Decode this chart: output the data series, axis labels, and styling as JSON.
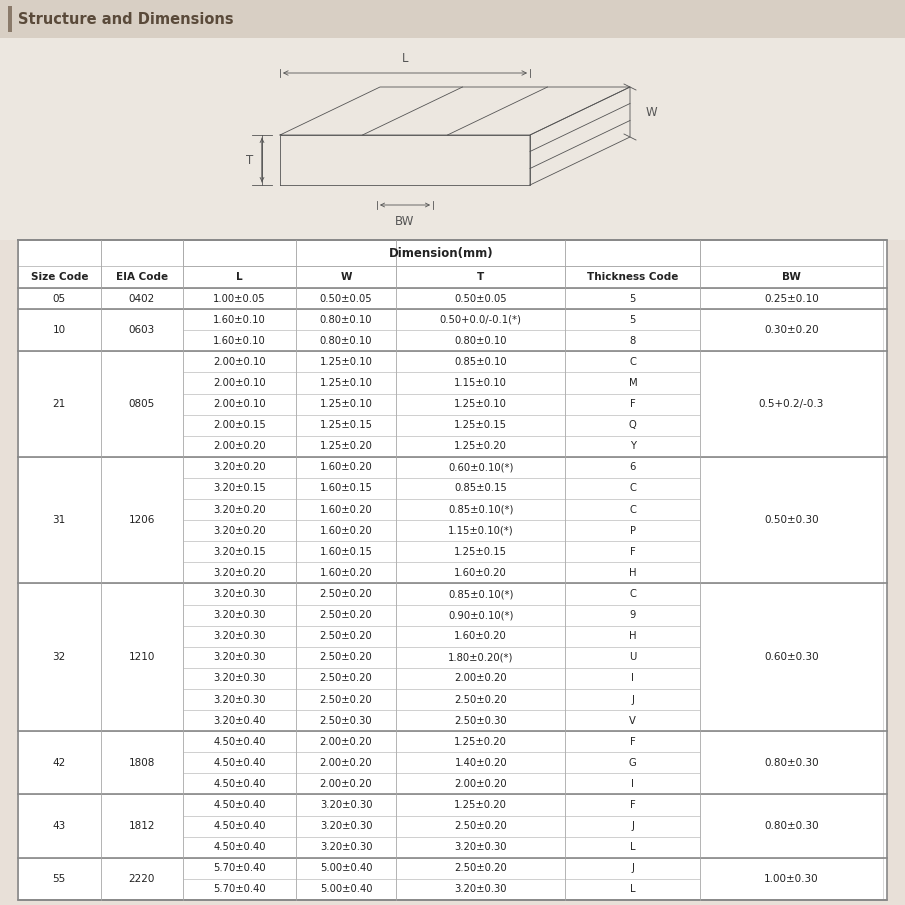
{
  "title": "Structure and Dimensions",
  "title_bar_color": "#c8b89a",
  "title_text_color": "#5a4a3a",
  "bg_color": "#e8e0d8",
  "table_bg": "#ffffff",
  "rows": [
    [
      "05",
      "0402",
      "1.00±0.05",
      "0.50±0.05",
      "0.50±0.05",
      "5",
      "0.25±0.10"
    ],
    [
      "10",
      "0603",
      "1.60±0.10",
      "0.80±0.10",
      "0.50+0.0/-0.1(*)",
      "5",
      "0.30±0.20"
    ],
    [
      "10",
      "0603",
      "1.60±0.10",
      "0.80±0.10",
      "0.80±0.10",
      "8",
      "0.30±0.20"
    ],
    [
      "21",
      "0805",
      "2.00±0.10",
      "1.25±0.10",
      "0.85±0.10",
      "C",
      "0.5+0.2/-0.3"
    ],
    [
      "21",
      "0805",
      "2.00±0.10",
      "1.25±0.10",
      "1.15±0.10",
      "M",
      "0.5+0.2/-0.3"
    ],
    [
      "21",
      "0805",
      "2.00±0.10",
      "1.25±0.10",
      "1.25±0.10",
      "F",
      "0.5+0.2/-0.3"
    ],
    [
      "21",
      "0805",
      "2.00±0.15",
      "1.25±0.15",
      "1.25±0.15",
      "Q",
      "0.5+0.2/-0.3"
    ],
    [
      "21",
      "0805",
      "2.00±0.20",
      "1.25±0.20",
      "1.25±0.20",
      "Y",
      "0.5+0.2/-0.3"
    ],
    [
      "31",
      "1206",
      "3.20±0.20",
      "1.60±0.20",
      "0.60±0.10(*)",
      "6",
      "0.50±0.30"
    ],
    [
      "31",
      "1206",
      "3.20±0.15",
      "1.60±0.15",
      "0.85±0.15",
      "C",
      "0.50±0.30"
    ],
    [
      "31",
      "1206",
      "3.20±0.20",
      "1.60±0.20",
      "0.85±0.10(*)",
      "C",
      "0.50±0.30"
    ],
    [
      "31",
      "1206",
      "3.20±0.20",
      "1.60±0.20",
      "1.15±0.10(*)",
      "P",
      "0.50±0.30"
    ],
    [
      "31",
      "1206",
      "3.20±0.15",
      "1.60±0.15",
      "1.25±0.15",
      "F",
      "0.50±0.30"
    ],
    [
      "31",
      "1206",
      "3.20±0.20",
      "1.60±0.20",
      "1.60±0.20",
      "H",
      "0.50±0.30"
    ],
    [
      "32",
      "1210",
      "3.20±0.30",
      "2.50±0.20",
      "0.85±0.10(*)",
      "C",
      "0.60±0.30"
    ],
    [
      "32",
      "1210",
      "3.20±0.30",
      "2.50±0.20",
      "0.90±0.10(*)",
      "9",
      "0.60±0.30"
    ],
    [
      "32",
      "1210",
      "3.20±0.30",
      "2.50±0.20",
      "1.60±0.20",
      "H",
      "0.60±0.30"
    ],
    [
      "32",
      "1210",
      "3.20±0.30",
      "2.50±0.20",
      "1.80±0.20(*)",
      "U",
      "0.60±0.30"
    ],
    [
      "32",
      "1210",
      "3.20±0.30",
      "2.50±0.20",
      "2.00±0.20",
      "I",
      "0.60±0.30"
    ],
    [
      "32",
      "1210",
      "3.20±0.30",
      "2.50±0.20",
      "2.50±0.20",
      "J",
      "0.60±0.30"
    ],
    [
      "32",
      "1210",
      "3.20±0.40",
      "2.50±0.30",
      "2.50±0.30",
      "V",
      "0.60±0.30"
    ],
    [
      "42",
      "1808",
      "4.50±0.40",
      "2.00±0.20",
      "1.25±0.20",
      "F",
      "0.80±0.30"
    ],
    [
      "42",
      "1808",
      "4.50±0.40",
      "2.00±0.20",
      "1.40±0.20",
      "G",
      "0.80±0.30"
    ],
    [
      "42",
      "1808",
      "4.50±0.40",
      "2.00±0.20",
      "2.00±0.20",
      "I",
      "0.80±0.30"
    ],
    [
      "43",
      "1812",
      "4.50±0.40",
      "3.20±0.30",
      "1.25±0.20",
      "F",
      "0.80±0.30"
    ],
    [
      "43",
      "1812",
      "4.50±0.40",
      "3.20±0.30",
      "2.50±0.20",
      "J",
      "0.80±0.30"
    ],
    [
      "43",
      "1812",
      "4.50±0.40",
      "3.20±0.30",
      "3.20±0.30",
      "L",
      "0.80±0.30"
    ],
    [
      "55",
      "2220",
      "5.70±0.40",
      "5.00±0.40",
      "2.50±0.20",
      "J",
      "1.00±0.30"
    ],
    [
      "55",
      "2220",
      "5.70±0.40",
      "5.00±0.40",
      "3.20±0.30",
      "L",
      "1.00±0.30"
    ]
  ],
  "size_groups": [
    [
      0,
      0,
      "05",
      "0402",
      "0.25±0.10"
    ],
    [
      1,
      2,
      "10",
      "0603",
      "0.30±0.20"
    ],
    [
      3,
      7,
      "21",
      "0805",
      "0.5+0.2/-0.3"
    ],
    [
      8,
      13,
      "31",
      "1206",
      "0.50±0.30"
    ],
    [
      14,
      20,
      "32",
      "1210",
      "0.60±0.30"
    ],
    [
      21,
      23,
      "42",
      "1808",
      "0.80±0.30"
    ],
    [
      24,
      26,
      "43",
      "1812",
      "0.80±0.30"
    ],
    [
      27,
      28,
      "55",
      "2220",
      "1.00±0.30"
    ]
  ]
}
